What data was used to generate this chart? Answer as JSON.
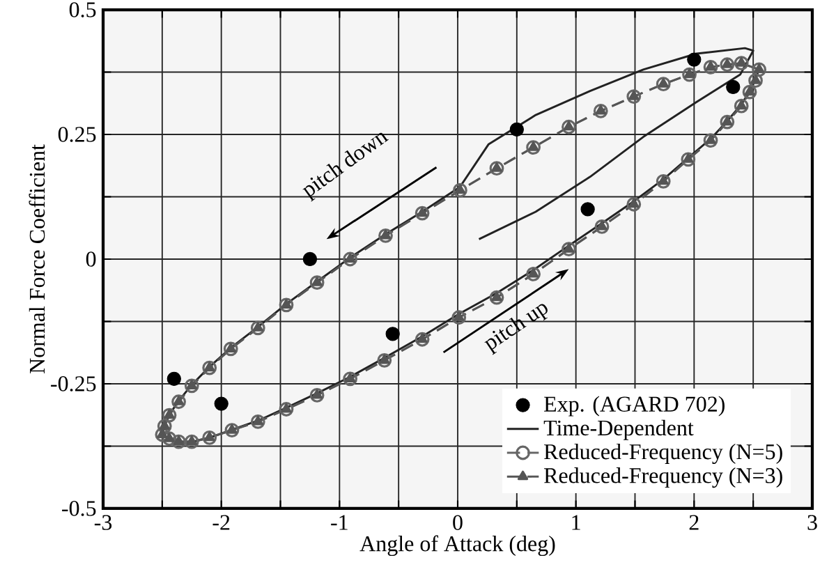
{
  "chart_data": {
    "type": "line",
    "xlabel": "Angle of Attack (deg)",
    "ylabel": "Normal Force Coefficient",
    "xlim": [
      -3,
      3
    ],
    "ylim": [
      -0.5,
      0.5
    ],
    "xticks": [
      -3,
      {
        "value": -2.5,
        "label": null
      },
      -2,
      {
        "value": -1.5,
        "label": null
      },
      -1,
      {
        "value": -0.5,
        "label": null
      },
      0,
      {
        "value": 0.5,
        "label": null
      },
      1,
      {
        "value": 1.5,
        "label": null
      },
      2,
      {
        "value": 2.5,
        "label": null
      },
      3
    ],
    "yticks": [
      -0.5,
      {
        "value": -0.375,
        "label": null
      },
      -0.25,
      {
        "value": -0.125,
        "label": null
      },
      0,
      {
        "value": 0.125,
        "label": null
      },
      0.25,
      {
        "value": 0.375,
        "label": null
      },
      0.5
    ],
    "grid": true,
    "legend": "bottom right",
    "annotations": [
      "pitch down",
      "pitch up"
    ],
    "series": [
      {
        "name": "Exp. (AGARD 702)",
        "type": "scatter",
        "color": "#000000",
        "marker": "circle",
        "x": [
          -2.4,
          -2.0,
          -1.25,
          -0.55,
          0.5,
          1.1,
          2.0,
          2.33
        ],
        "values": [
          -0.24,
          -0.29,
          0.0,
          -0.15,
          0.26,
          0.1,
          0.4,
          0.345
        ]
      },
      {
        "name": "Time-Dependent",
        "color": "#222222",
        "marker": "none",
        "line_style": "solid",
        "x": [
          0.18,
          0.66,
          1.12,
          1.57,
          2.02,
          2.39,
          2.5,
          2.43,
          2.02,
          1.57,
          1.12,
          0.66,
          0.26,
          0.02,
          -0.3,
          -0.61,
          -0.91,
          -1.19,
          -1.45,
          -1.69,
          -1.92,
          -2.1,
          -2.25,
          -2.36,
          -2.44,
          -2.48,
          -2.5,
          -2.44,
          -2.36,
          -2.25,
          -2.1,
          -1.91,
          -1.69,
          -1.45,
          -1.19,
          -0.91,
          -0.62,
          -0.3,
          0.01,
          0.33,
          0.64,
          0.94,
          1.22,
          1.49,
          1.74,
          1.95,
          2.14,
          2.28,
          2.4,
          2.47,
          2.52,
          2.55
        ],
        "values": [
          0.04,
          0.095,
          0.165,
          0.245,
          0.315,
          0.37,
          0.418,
          0.423,
          0.412,
          0.38,
          0.337,
          0.289,
          0.23,
          0.145,
          0.095,
          0.05,
          0.003,
          -0.045,
          -0.09,
          -0.136,
          -0.178,
          -0.216,
          -0.252,
          -0.284,
          -0.312,
          -0.334,
          -0.352,
          -0.362,
          -0.367,
          -0.367,
          -0.358,
          -0.342,
          -0.324,
          -0.298,
          -0.269,
          -0.236,
          -0.198,
          -0.155,
          -0.11,
          -0.068,
          -0.022,
          0.027,
          0.072,
          0.116,
          0.16,
          0.203,
          0.241,
          0.277,
          0.31,
          0.337,
          0.36,
          0.382
        ]
      },
      {
        "name": "Reduced-Frequency (N=5)",
        "color": "#666666",
        "marker": "circle",
        "line_style": "dashed",
        "x": [
          2.55,
          2.4,
          2.28,
          2.14,
          1.96,
          1.74,
          1.49,
          1.21,
          0.94,
          0.64,
          0.33,
          0.02,
          -0.3,
          -0.61,
          -0.91,
          -1.19,
          -1.45,
          -1.69,
          -1.92,
          -2.1,
          -2.25,
          -2.36,
          -2.44,
          -2.48,
          -2.5,
          -2.44,
          -2.36,
          -2.25,
          -2.1,
          -1.91,
          -1.69,
          -1.45,
          -1.19,
          -0.91,
          -0.62,
          -0.3,
          0.01,
          0.33,
          0.64,
          0.94,
          1.22,
          1.49,
          1.74,
          1.95,
          2.14,
          2.28,
          2.4,
          2.47,
          2.52
        ],
        "values": [
          0.38,
          0.393,
          0.39,
          0.385,
          0.37,
          0.351,
          0.326,
          0.297,
          0.265,
          0.224,
          0.182,
          0.138,
          0.092,
          0.047,
          0.0,
          -0.047,
          -0.092,
          -0.138,
          -0.18,
          -0.218,
          -0.254,
          -0.286,
          -0.313,
          -0.335,
          -0.352,
          -0.36,
          -0.366,
          -0.366,
          -0.358,
          -0.343,
          -0.326,
          -0.301,
          -0.273,
          -0.24,
          -0.203,
          -0.161,
          -0.117,
          -0.077,
          -0.03,
          0.02,
          0.065,
          0.11,
          0.156,
          0.2,
          0.238,
          0.275,
          0.307,
          0.335,
          0.358
        ]
      },
      {
        "name": "Reduced-Frequency (N=3)",
        "color": "#555555",
        "marker": "triangle",
        "line_style": "dashed",
        "x": [
          2.55,
          2.4,
          2.28,
          2.14,
          1.96,
          1.74,
          1.49,
          1.21,
          0.94,
          0.64,
          0.33,
          0.02,
          -0.3,
          -0.61,
          -0.91,
          -1.19,
          -1.45,
          -1.69,
          -1.92,
          -2.1,
          -2.25,
          -2.36,
          -2.44,
          -2.48,
          -2.5,
          -2.44,
          -2.36,
          -2.25,
          -2.1,
          -1.91,
          -1.69,
          -1.45,
          -1.19,
          -0.91,
          -0.62,
          -0.3,
          0.01,
          0.33,
          0.64,
          0.94,
          1.22,
          1.49,
          1.74,
          1.95,
          2.14,
          2.28,
          2.4,
          2.47,
          2.52
        ],
        "values": [
          0.38,
          0.393,
          0.39,
          0.385,
          0.37,
          0.351,
          0.326,
          0.297,
          0.265,
          0.224,
          0.182,
          0.138,
          0.092,
          0.047,
          0.0,
          -0.047,
          -0.092,
          -0.138,
          -0.18,
          -0.218,
          -0.254,
          -0.286,
          -0.313,
          -0.335,
          -0.352,
          -0.36,
          -0.366,
          -0.366,
          -0.358,
          -0.343,
          -0.326,
          -0.301,
          -0.273,
          -0.24,
          -0.203,
          -0.161,
          -0.117,
          -0.077,
          -0.03,
          0.02,
          0.065,
          0.11,
          0.156,
          0.2,
          0.238,
          0.275,
          0.307,
          0.335,
          0.358
        ]
      }
    ]
  }
}
